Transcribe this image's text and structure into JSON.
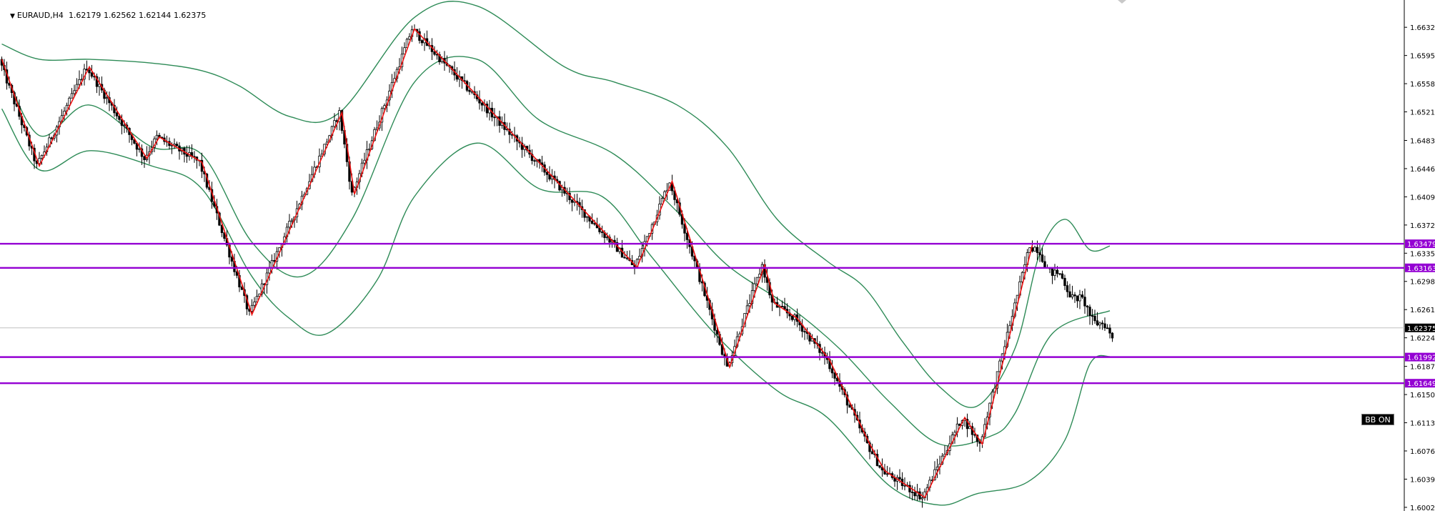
{
  "header": {
    "symbol": "EURAUD,H4",
    "open": "1.62179",
    "high": "1.62562",
    "low": "1.62144",
    "close": "1.62375"
  },
  "badge": {
    "label": "BB ON"
  },
  "colors": {
    "bollinger": "#2e8b57",
    "zigzag": "#ee1111",
    "level_line": "#9400d3",
    "candle_bear": "#000000",
    "candle_bull_fill": "#ffffff",
    "current_price_line": "#c0c0c0"
  },
  "chart_data": {
    "type": "candlestick",
    "instrument": "EURAUD",
    "timeframe": "H4",
    "ylim": [
      1.6,
      1.6665
    ],
    "y_ticks": [
      "1.66320",
      "1.65950",
      "1.65580",
      "1.65210",
      "1.64835",
      "1.64465",
      "1.64095",
      "1.63725",
      "1.63355",
      "1.62985",
      "1.62615",
      "1.62245",
      "1.61870",
      "1.61500",
      "1.61130",
      "1.60760",
      "1.60390",
      "1.60020"
    ],
    "current_price": "1.62375",
    "horizontal_levels": [
      "1.63479",
      "1.63163",
      "1.61992",
      "1.61649"
    ],
    "zigzag": [
      {
        "bar": 0,
        "price": 1.659
      },
      {
        "bar": 15,
        "price": 1.645
      },
      {
        "bar": 35,
        "price": 1.658
      },
      {
        "bar": 58,
        "price": 1.646
      },
      {
        "bar": 63,
        "price": 1.6488
      },
      {
        "bar": 80,
        "price": 1.6455
      },
      {
        "bar": 100,
        "price": 1.6255
      },
      {
        "bar": 136,
        "price": 1.652
      },
      {
        "bar": 141,
        "price": 1.6413
      },
      {
        "bar": 165,
        "price": 1.663
      },
      {
        "bar": 254,
        "price": 1.6317
      },
      {
        "bar": 268,
        "price": 1.643
      },
      {
        "bar": 291,
        "price": 1.6186
      },
      {
        "bar": 305,
        "price": 1.632
      },
      {
        "bar": 309,
        "price": 1.627
      },
      {
        "bar": 318,
        "price": 1.625
      },
      {
        "bar": 331,
        "price": 1.6195
      },
      {
        "bar": 347,
        "price": 1.6085
      },
      {
        "bar": 353,
        "price": 1.605
      },
      {
        "bar": 369,
        "price": 1.6015
      },
      {
        "bar": 385,
        "price": 1.612
      },
      {
        "bar": 392,
        "price": 1.6085
      },
      {
        "bar": 412,
        "price": 1.6346
      }
    ],
    "candles_note": "OHLC series for ~445 H4 bars is generated deterministically in the page script to follow the zigzag path; values are approximate reads of the plot",
    "bollinger_bands": {
      "middle": [
        [
          0,
          1.6585
        ],
        [
          15,
          1.649
        ],
        [
          35,
          1.653
        ],
        [
          60,
          1.6475
        ],
        [
          80,
          1.6465
        ],
        [
          100,
          1.635
        ],
        [
          120,
          1.6305
        ],
        [
          140,
          1.638
        ],
        [
          165,
          1.656
        ],
        [
          190,
          1.659
        ],
        [
          215,
          1.651
        ],
        [
          245,
          1.6465
        ],
        [
          270,
          1.639
        ],
        [
          290,
          1.632
        ],
        [
          315,
          1.6265
        ],
        [
          335,
          1.621
        ],
        [
          355,
          1.614
        ],
        [
          375,
          1.6085
        ],
        [
          395,
          1.6095
        ],
        [
          405,
          1.6125
        ],
        [
          420,
          1.623
        ],
        [
          443,
          1.626
        ]
      ],
      "upper": [
        [
          0,
          1.661
        ],
        [
          15,
          1.659
        ],
        [
          35,
          1.659
        ],
        [
          60,
          1.6585
        ],
        [
          80,
          1.6575
        ],
        [
          95,
          1.6555
        ],
        [
          115,
          1.6515
        ],
        [
          135,
          1.652
        ],
        [
          165,
          1.6645
        ],
        [
          190,
          1.666
        ],
        [
          225,
          1.658
        ],
        [
          245,
          1.656
        ],
        [
          270,
          1.653
        ],
        [
          290,
          1.6475
        ],
        [
          310,
          1.638
        ],
        [
          330,
          1.6325
        ],
        [
          345,
          1.629
        ],
        [
          360,
          1.622
        ],
        [
          375,
          1.616
        ],
        [
          390,
          1.6135
        ],
        [
          405,
          1.621
        ],
        [
          415,
          1.6335
        ],
        [
          425,
          1.638
        ],
        [
          435,
          1.634
        ],
        [
          443,
          1.6345
        ]
      ],
      "lower": [
        [
          0,
          1.6525
        ],
        [
          15,
          1.6445
        ],
        [
          35,
          1.647
        ],
        [
          60,
          1.645
        ],
        [
          80,
          1.642
        ],
        [
          100,
          1.6305
        ],
        [
          115,
          1.625
        ],
        [
          130,
          1.623
        ],
        [
          150,
          1.63
        ],
        [
          165,
          1.641
        ],
        [
          190,
          1.648
        ],
        [
          215,
          1.642
        ],
        [
          240,
          1.641
        ],
        [
          260,
          1.633
        ],
        [
          285,
          1.623
        ],
        [
          310,
          1.6155
        ],
        [
          330,
          1.612
        ],
        [
          355,
          1.603
        ],
        [
          375,
          1.6005
        ],
        [
          390,
          1.602
        ],
        [
          410,
          1.6035
        ],
        [
          425,
          1.609
        ],
        [
          435,
          1.619
        ],
        [
          443,
          1.62
        ]
      ]
    }
  }
}
